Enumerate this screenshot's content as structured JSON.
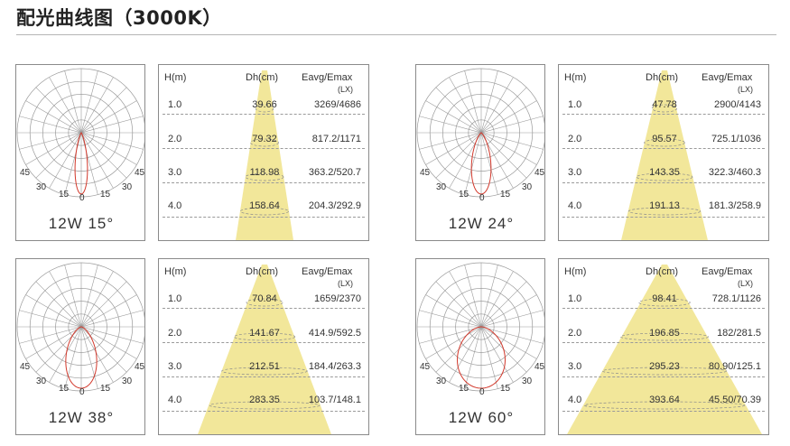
{
  "title": "配光曲线图（3000K）",
  "angle_labels": [
    "45",
    "30",
    "15",
    "0",
    "15",
    "30",
    "45"
  ],
  "headers": {
    "h": "H(m)",
    "dh": "Dh(cm)",
    "eavg": "Eavg/Emax",
    "unit": "(LX)"
  },
  "colors": {
    "cone": "#f2e79a",
    "curve": "#d2382b",
    "grid": "#9a9a9a",
    "border": "#8a8a8a"
  },
  "panels": [
    {
      "model": "12W 15°",
      "beam_angle": 15,
      "rows": [
        {
          "h": "1.0",
          "dh": "39.66",
          "e": "3269/4686"
        },
        {
          "h": "2.0",
          "dh": "79.32",
          "e": "817.2/1171"
        },
        {
          "h": "3.0",
          "dh": "118.98",
          "e": "363.2/520.7"
        },
        {
          "h": "4.0",
          "dh": "158.64",
          "e": "204.3/292.9"
        }
      ]
    },
    {
      "model": "12W 24°",
      "beam_angle": 24,
      "rows": [
        {
          "h": "1.0",
          "dh": "47.78",
          "e": "2900/4143"
        },
        {
          "h": "2.0",
          "dh": "95.57",
          "e": "725.1/1036"
        },
        {
          "h": "3.0",
          "dh": "143.35",
          "e": "322.3/460.3"
        },
        {
          "h": "4.0",
          "dh": "191.13",
          "e": "181.3/258.9"
        }
      ]
    },
    {
      "model": "12W 38°",
      "beam_angle": 38,
      "rows": [
        {
          "h": "1.0",
          "dh": "70.84",
          "e": "1659/2370"
        },
        {
          "h": "2.0",
          "dh": "141.67",
          "e": "414.9/592.5"
        },
        {
          "h": "3.0",
          "dh": "212.51",
          "e": "184.4/263.3"
        },
        {
          "h": "4.0",
          "dh": "283.35",
          "e": "103.7/148.1"
        }
      ]
    },
    {
      "model": "12W 60°",
      "beam_angle": 60,
      "rows": [
        {
          "h": "1.0",
          "dh": "98.41",
          "e": "728.1/1126"
        },
        {
          "h": "2.0",
          "dh": "196.85",
          "e": "182/281.5"
        },
        {
          "h": "3.0",
          "dh": "295.23",
          "e": "80.90/125.1"
        },
        {
          "h": "4.0",
          "dh": "393.64",
          "e": "45.50/70.39"
        }
      ]
    }
  ]
}
